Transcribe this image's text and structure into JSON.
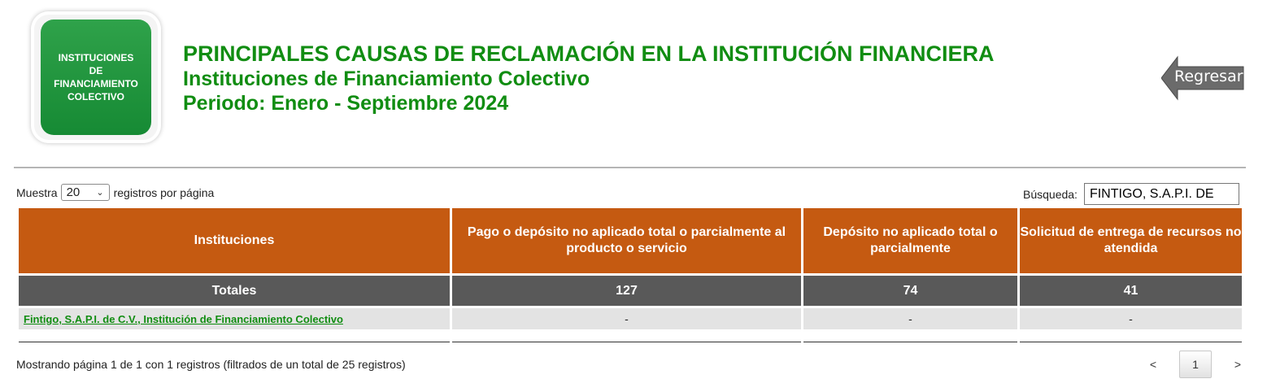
{
  "logo": {
    "line1": "INSTITUCIONES",
    "line2": "DE",
    "line3": "FINANCIAMIENTO",
    "line4": "COLECTIVO"
  },
  "header": {
    "title": "PRINCIPALES CAUSAS DE RECLAMACIÓN EN LA INSTITUCIÓN FINANCIERA",
    "subtitle": "Instituciones de Financiamiento Colectivo",
    "period": "Periodo: Enero - Septiembre 2024"
  },
  "back_button": {
    "label": "Regresar",
    "icon": "arrow-left-icon",
    "color": "#666666"
  },
  "controls": {
    "length_prefix": "Muestra",
    "length_value": "20",
    "length_suffix": "registros por página",
    "search_label": "Búsqueda:",
    "search_value": "FINTIGO, S.A.P.I. DE"
  },
  "table": {
    "columns": [
      "Instituciones",
      "Pago o depósito no aplicado total o parcialmente al producto o servicio",
      "Depósito no aplicado total o parcialmente",
      "Solicitud de entrega de recursos no atendida"
    ],
    "totals": [
      "Totales",
      "127",
      "74",
      "41"
    ],
    "rows": [
      [
        "Fintigo, S.A.P.I. de C.V., Institución de Financiamiento Colectivo",
        "-",
        "-",
        "-"
      ]
    ]
  },
  "footer": {
    "info": "Mostrando página 1 de 1 con 1 registros (filtrados de un total de 25 registros)",
    "prev": "<",
    "page": "1",
    "next": ">"
  },
  "colors": {
    "brand_green": "#118d12",
    "header_orange": "#c55a11",
    "totals_gray": "#595959"
  }
}
